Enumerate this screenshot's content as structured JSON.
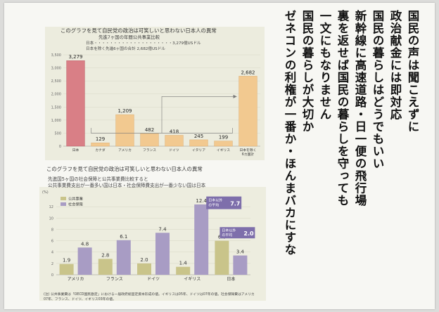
{
  "poem": [
    "国民の声は聞こえずに",
    "政治献金には即対応",
    "国民の暮らしはどうでもいい",
    "新幹線に高速道路・日一便の飛行場",
    "裏を返せば国民の暮らしを守っても",
    "一文にもなりません",
    "国民の暮らしが大切か",
    "ゼネコンの利権が一番か・ほんまバカにすな"
  ],
  "chart_data": [
    {
      "type": "bar",
      "title": "このグラフを見て自民党の政治は可笑しいと思わない日本人の異常",
      "subtitle": "先進7ヶ国の年間公共事業比較",
      "notes": [
        "日本・・・・・・・・・・・・・・・・・・・・3,279億USドル",
        "日本を除く先進6ヶ国の合計 2,682億USドル"
      ],
      "categories": [
        "日本",
        "カナダ",
        "アメリカ",
        "フランス",
        "ドイツ",
        "イタリア",
        "イギリス",
        "日本を除く6カ国計"
      ],
      "values": [
        3279,
        129,
        1209,
        482,
        418,
        245,
        199,
        2682
      ],
      "value_labels": [
        "3,279",
        "129",
        "1,209",
        "482",
        "418",
        "245",
        "199",
        "2,682"
      ],
      "yticks": [
        "3,500",
        "3,000",
        "2,500",
        "2,000",
        "1,500",
        "1,000",
        "500",
        "0"
      ],
      "ylim": [
        0,
        3500
      ],
      "colors": {
        "japan": "#d97f86",
        "others": "#f2c990"
      }
    },
    {
      "type": "bar",
      "title": "このグラフを見て自民党の政治は可笑しいと思わない日本人の異常",
      "subtitle_lines": [
        "先進国5ヶ国の社会保障と公共事業費比較すると",
        "公共事業費支出が一番多い国は日本・社会保障費支出が一番少ない国は日本"
      ],
      "categories": [
        "アメリカ",
        "フランス",
        "ドイツ",
        "イギリス",
        "日本"
      ],
      "series": [
        {
          "name": "公共事業",
          "values": [
            1.9,
            2.8,
            2.0,
            1.4,
            6.0
          ]
        },
        {
          "name": "社会保障",
          "values": [
            4.8,
            6.1,
            7.4,
            12.4,
            3.4
          ]
        }
      ],
      "unit": "(%)",
      "yticks": [
        "12",
        "10",
        "8",
        "6",
        "4",
        "2",
        "0"
      ],
      "ylim": [
        0,
        14
      ],
      "callouts": [
        {
          "label": "日本以外の平均",
          "value": "7.7"
        },
        {
          "label": "日本以外の平均",
          "value": "2.0"
        }
      ],
      "footnote": "(注) 公共事業費は「OECD国民勘定」における一般政府総固定資本形成の値。イギリスは05年、ドイツは07年の値。社会保障費はアメリカ07年、フランス、ドイツ、イギリス03年の値。",
      "colors": {
        "public": "#c9c48a",
        "social": "#a89cc4",
        "callout": "#7e6fab"
      }
    }
  ]
}
